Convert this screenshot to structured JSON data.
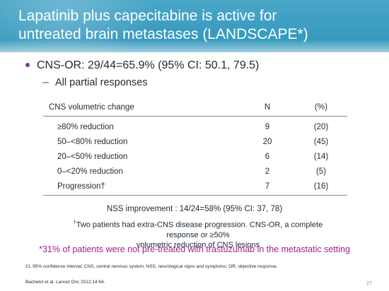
{
  "title": {
    "line1": "Lapatinib plus capecitabine is active for",
    "line2": "untreated brain metastases (LANDSCAPE*)"
  },
  "bullet": "CNS-OR: 29/44=65.9% (95% CI: 50.1, 79.5)",
  "sub_bullet": "All partial responses",
  "table": {
    "headers": [
      "CNS volumetric change",
      "N",
      "(%)"
    ],
    "rows": [
      {
        "label": "≥80% reduction",
        "n": "9",
        "pct": "(20)"
      },
      {
        "label": "50–<80% reduction",
        "n": "20",
        "pct": "(45)"
      },
      {
        "label": "20–<50% reduction",
        "n": "6",
        "pct": "(14)"
      },
      {
        "label": "0–<20% reduction",
        "n": "2",
        "pct": "(5)"
      },
      {
        "label": "Progression†",
        "n": "7",
        "pct": "(16)"
      }
    ]
  },
  "nss": "NSS improvement : 14/24=58% (95% CI: 37, 78)",
  "footnote": {
    "mark": "†",
    "line1": "Two patients had extra-CNS disease progression. CNS-OR, a complete response or ≥50%",
    "line2": "volumetric reduction of CNS lesions"
  },
  "highlight": "*31% of patients were not pre-treated with trastuzumab in the metastatic setting",
  "abbreviations": "CI, 95%  confidence interval; CNS, central nervous system; NSS, neurological signs and symptoms; OR, objective response.",
  "citation": "Bachelot et al. Lancet Onc 2013;14:64.",
  "page_number": "27",
  "colors": {
    "title_bar": "#3a9ec3",
    "accent_purple": "#7a3f8f",
    "highlight_magenta": "#a0228f"
  }
}
